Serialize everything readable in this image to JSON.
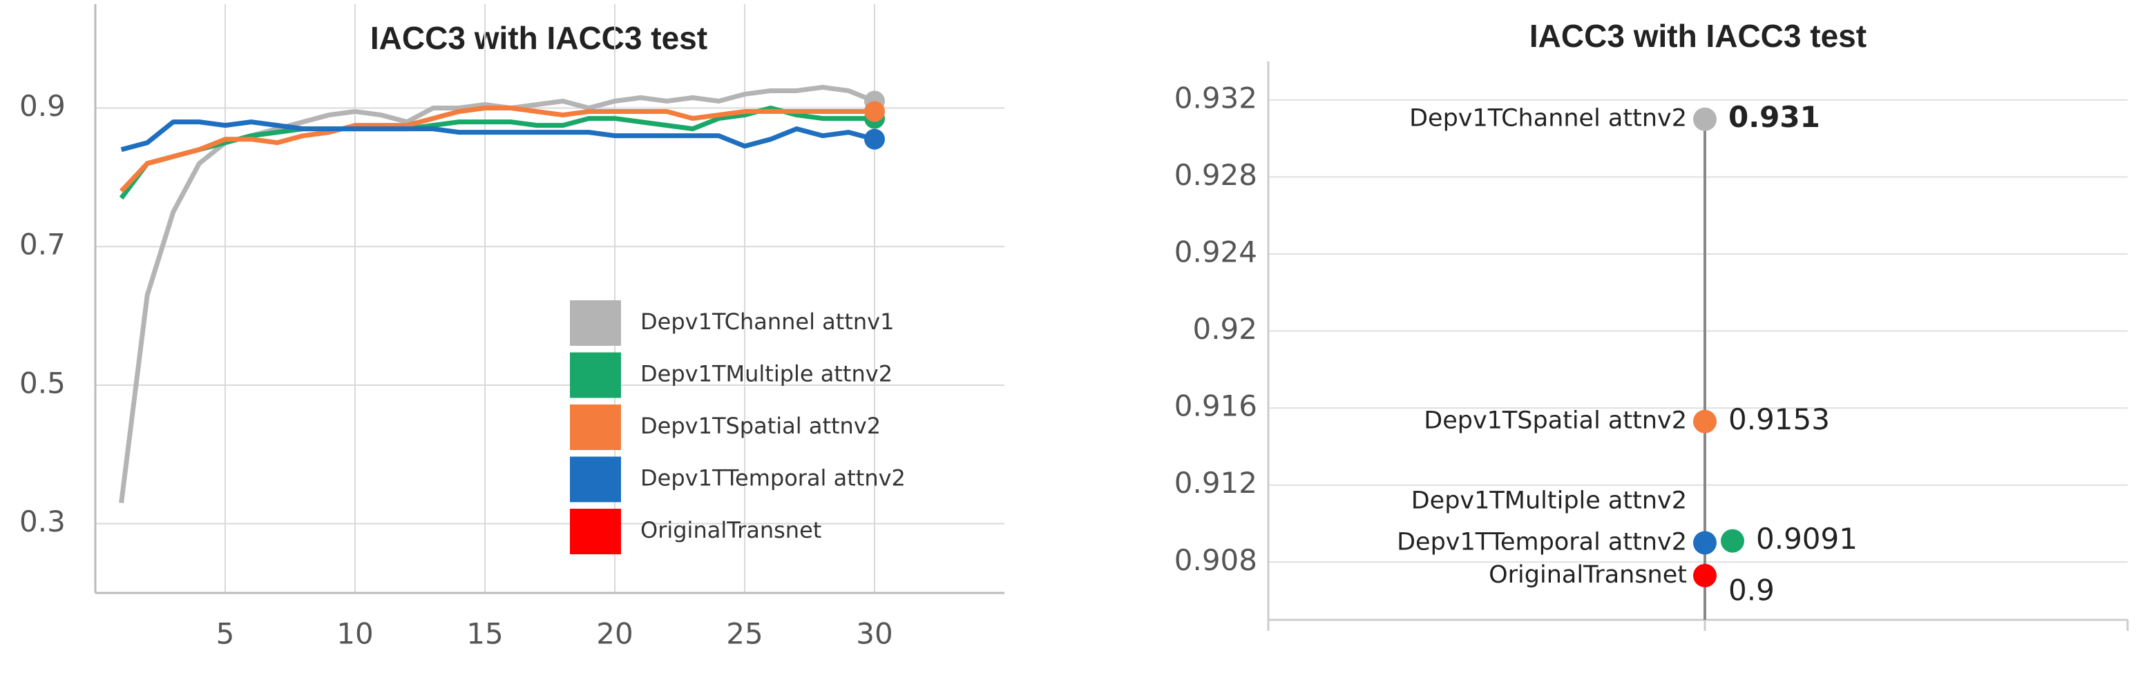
{
  "chart_data": [
    {
      "type": "line",
      "title": "IACC3 with IACC3 test",
      "x": [
        1,
        2,
        3,
        4,
        5,
        6,
        7,
        8,
        9,
        10,
        11,
        12,
        13,
        14,
        15,
        16,
        17,
        18,
        19,
        20,
        21,
        22,
        23,
        24,
        25,
        26,
        27,
        28,
        29,
        30
      ],
      "series": [
        {
          "name": "Depv1TChannel attnv1",
          "color": "#b4b4b4",
          "values": [
            0.33,
            0.63,
            0.75,
            0.82,
            0.85,
            0.86,
            0.87,
            0.88,
            0.89,
            0.895,
            0.89,
            0.88,
            0.9,
            0.9,
            0.905,
            0.9,
            0.905,
            0.91,
            0.9,
            0.91,
            0.915,
            0.91,
            0.915,
            0.91,
            0.92,
            0.925,
            0.925,
            0.93,
            0.925,
            0.91
          ]
        },
        {
          "name": "Depv1TMultiple attnv2",
          "color": "#1aa86a",
          "values": [
            0.77,
            0.82,
            0.83,
            0.84,
            0.85,
            0.86,
            0.865,
            0.87,
            0.87,
            0.87,
            0.87,
            0.87,
            0.875,
            0.88,
            0.88,
            0.88,
            0.875,
            0.875,
            0.885,
            0.885,
            0.88,
            0.875,
            0.87,
            0.885,
            0.89,
            0.9,
            0.89,
            0.885,
            0.885,
            0.885
          ]
        },
        {
          "name": "Depv1TSpatial attnv2",
          "color": "#f47c3c",
          "values": [
            0.78,
            0.82,
            0.83,
            0.84,
            0.855,
            0.855,
            0.85,
            0.86,
            0.865,
            0.875,
            0.875,
            0.875,
            0.885,
            0.895,
            0.9,
            0.9,
            0.895,
            0.89,
            0.895,
            0.895,
            0.895,
            0.895,
            0.885,
            0.89,
            0.895,
            0.895,
            0.895,
            0.895,
            0.895,
            0.895
          ]
        },
        {
          "name": "Depv1TTemporal attnv2",
          "color": "#1f6fc0",
          "values": [
            0.84,
            0.85,
            0.88,
            0.88,
            0.875,
            0.88,
            0.875,
            0.87,
            0.87,
            0.87,
            0.87,
            0.87,
            0.87,
            0.865,
            0.865,
            0.865,
            0.865,
            0.865,
            0.865,
            0.86,
            0.86,
            0.86,
            0.86,
            0.86,
            0.845,
            0.855,
            0.87,
            0.86,
            0.865,
            0.855
          ]
        },
        {
          "name": "OriginalTransnet",
          "color": "#ff0000",
          "values": [
            null,
            null,
            null,
            null,
            null,
            null,
            null,
            null,
            null,
            null,
            null,
            null,
            null,
            null,
            null,
            null,
            null,
            null,
            null,
            null,
            null,
            null,
            null,
            null,
            null,
            null,
            null,
            null,
            null,
            null
          ]
        }
      ],
      "xlim": [
        0,
        35
      ],
      "xticks": [
        5,
        10,
        15,
        20,
        25,
        30
      ],
      "ylim": [
        0.2,
        1.05
      ],
      "yticks": [
        0.3,
        0.5,
        0.7,
        0.9
      ],
      "grid": true,
      "legend": "lower right"
    },
    {
      "type": "dot",
      "title": "IACC3 with IACC3 test",
      "categories": [
        "Depv1TChannel attnv2",
        "Depv1TSpatial attnv2",
        "Depv1TMultiple attnv2",
        "Depv1TTemporal attnv2",
        "OriginalTransnet"
      ],
      "values": [
        0.931,
        0.9153,
        0.9091,
        0.909,
        0.9073
      ],
      "value_labels": [
        "0.931",
        "0.9153",
        "0.9091",
        null,
        "0.9"
      ],
      "colors": [
        "#b4b4b4",
        "#f47c3c",
        "#1aa86a",
        "#1f6fc0",
        "#ff0000"
      ],
      "ylim": [
        0.905,
        0.934
      ],
      "yticks": [
        0.908,
        0.912,
        0.916,
        0.92,
        0.924,
        0.928,
        0.932
      ],
      "grid": true
    }
  ]
}
